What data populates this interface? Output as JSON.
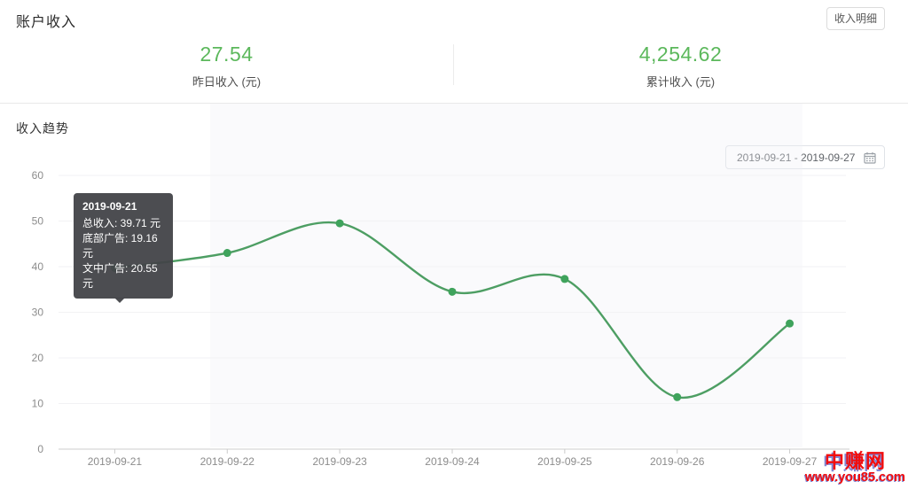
{
  "page": {
    "title": "账户收入",
    "details_button": "收入明细"
  },
  "stats": [
    {
      "value": "27.54",
      "label": "昨日收入 (元)"
    },
    {
      "value": "4,254.62",
      "label": "累计收入 (元)"
    }
  ],
  "trend": {
    "section_title": "收入趋势",
    "date_range": "2019-09-21 - 2019-09-27"
  },
  "tooltip": {
    "date": "2019-09-21",
    "lines": [
      "总收入: 39.71 元",
      "底部广告: 19.16 元",
      "文中广告: 20.55 元"
    ]
  },
  "watermark": {
    "name": "中赚网",
    "url": "www.you85.com"
  },
  "colors": {
    "stat_green": "#5cb85c",
    "line_green": "#4d9e63",
    "point_green": "#3fa35c",
    "axis_line": "#cccccc",
    "grid_line": "#f2f2f4",
    "axis_label": "#8c8c8c",
    "watermark_red": "#f20d0d"
  },
  "chart_data": {
    "type": "line",
    "title": "收入趋势",
    "categories": [
      "2019-09-21",
      "2019-09-22",
      "2019-09-23",
      "2019-09-24",
      "2019-09-25",
      "2019-09-26",
      "2019-09-27"
    ],
    "series": [
      {
        "name": "总收入",
        "values": [
          39.71,
          43.0,
          49.5,
          34.5,
          37.3,
          11.4,
          27.54
        ]
      }
    ],
    "xlabel": "",
    "ylabel": "",
    "ylim": [
      0,
      60
    ],
    "ytick_step": 10,
    "grid": true,
    "smooth": true,
    "legend_position": "none"
  }
}
